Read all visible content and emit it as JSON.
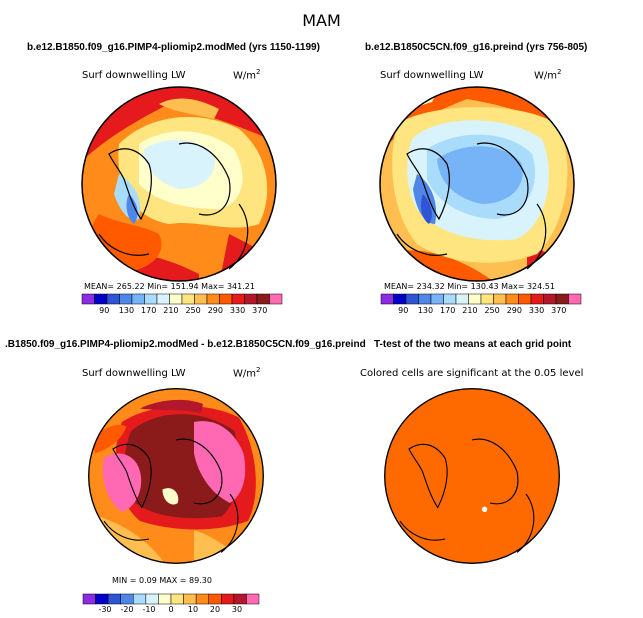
{
  "main_title": "MAM",
  "panels": [
    {
      "title": "b.e12.B1850.f09_g16.PIMP4-pliomip2.modMed (yrs 1150-1199)",
      "variable": "Surf downwelling LW",
      "units": "W/m",
      "units_exp": "2",
      "stats": "MEAN= 265.22   Min= 151.94   Max= 341.21",
      "colorbar": {
        "colors": [
          "#8b2be2",
          "#0000c8",
          "#2f55d4",
          "#4f87e8",
          "#77b4f7",
          "#a9dbfb",
          "#d8f3fb",
          "#ffffcc",
          "#ffe57f",
          "#ffbe50",
          "#ff8c1a",
          "#ff5a00",
          "#e41a1c",
          "#b2182b",
          "#8b1a1a",
          "#ff69b4"
        ],
        "labels": [
          "90",
          "130",
          "170",
          "210",
          "250",
          "290",
          "330",
          "370"
        ]
      }
    },
    {
      "title": "b.e12.B1850C5CN.f09_g16.preind (yrs 756-805)",
      "variable": "Surf downwelling LW",
      "units": "W/m",
      "units_exp": "2",
      "stats": "MEAN= 234.32   Min= 130.43   Max= 324.51",
      "colorbar": {
        "colors": [
          "#8b2be2",
          "#0000c8",
          "#2f55d4",
          "#4f87e8",
          "#77b4f7",
          "#a9dbfb",
          "#d8f3fb",
          "#ffffcc",
          "#ffe57f",
          "#ffbe50",
          "#ff8c1a",
          "#ff5a00",
          "#e41a1c",
          "#b2182b",
          "#8b1a1a",
          "#ff69b4"
        ],
        "labels": [
          "90",
          "130",
          "170",
          "210",
          "250",
          "290",
          "330",
          "370"
        ]
      }
    },
    {
      "title": ".B1850.f09_g16.PIMP4-pliomip2.modMed - b.e12.B1850C5CN.f09_g16.preind",
      "variable": "Surf downwelling LW",
      "units": "W/m",
      "units_exp": "2",
      "stats": "MIN =     0.09  MAX =   89.30",
      "colorbar": {
        "colors": [
          "#8b2be2",
          "#0000c8",
          "#2f55d4",
          "#4f87e8",
          "#a9dbfb",
          "#d8f3fb",
          "#ffffcc",
          "#ffe57f",
          "#ffbe50",
          "#ff8c1a",
          "#ff5a00",
          "#e41a1c",
          "#b2182b",
          "#ff69b4"
        ],
        "labels": [
          "-30",
          "-20",
          "-10",
          "0",
          "10",
          "20",
          "30"
        ]
      }
    },
    {
      "title": "T-test of the two means at each grid point",
      "subtitle": "Colored cells are significant at the 0.05 level"
    }
  ]
}
